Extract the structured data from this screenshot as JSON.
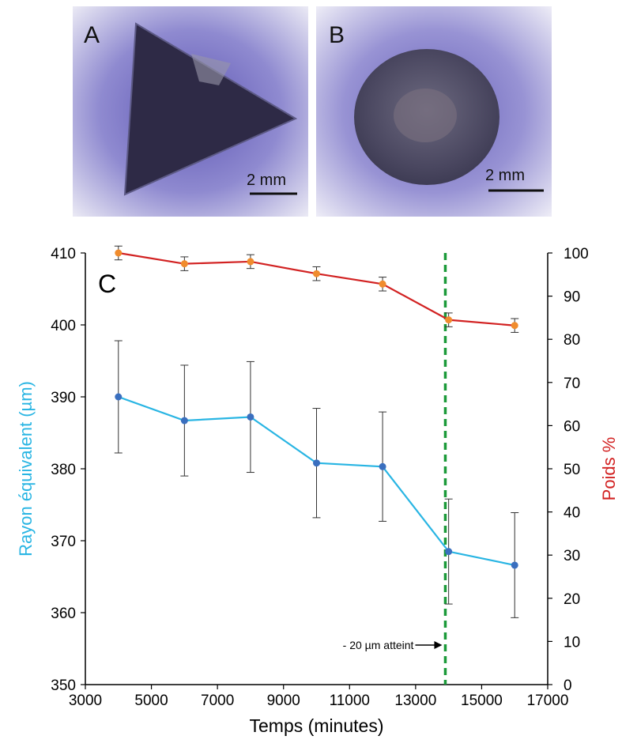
{
  "panels": {
    "a": {
      "label": "A",
      "scale_text": "2 mm"
    },
    "b": {
      "label": "B",
      "scale_text": "2 mm"
    }
  },
  "colors": {
    "radius": "#29b5e3",
    "radius_marker": "#3a6fbf",
    "weight": "#d22222",
    "weight_marker": "#f08c2e",
    "threshold": "#1c9a3a",
    "error_bar": "#333333"
  },
  "chart_data": {
    "type": "line",
    "panel_label": "C",
    "xlabel": "Temps (minutes)",
    "ylabel_left": "Rayon équivalent (µm)",
    "ylabel_right": "Poids %",
    "xlim": [
      3000,
      17000
    ],
    "ylim_left": [
      350,
      410
    ],
    "ylim_right": [
      0,
      100
    ],
    "x_ticks": [
      3000,
      5000,
      7000,
      9000,
      11000,
      13000,
      15000,
      17000
    ],
    "y_ticks_left": [
      350,
      360,
      370,
      380,
      390,
      400,
      410
    ],
    "y_ticks_right": [
      0,
      10,
      20,
      30,
      40,
      50,
      60,
      70,
      80,
      90,
      100
    ],
    "series": [
      {
        "axis": "left",
        "x": [
          4000,
          6000,
          8000,
          10000,
          12000,
          14000,
          16000
        ],
        "y": [
          390,
          386.7,
          387.2,
          380.8,
          380.3,
          368.5,
          366.6
        ],
        "error": [
          7.8,
          7.7,
          7.7,
          7.6,
          7.6,
          7.3,
          7.3
        ]
      },
      {
        "axis": "right",
        "x": [
          4000,
          6000,
          8000,
          10000,
          12000,
          14000,
          16000
        ],
        "y": [
          100,
          97.5,
          98,
          95.2,
          92.8,
          84.5,
          83.2
        ],
        "error": [
          1.6,
          1.6,
          1.6,
          1.6,
          1.6,
          1.6,
          1.6
        ]
      }
    ],
    "threshold": {
      "x": 13900,
      "label": "- 20 µm atteint"
    }
  }
}
